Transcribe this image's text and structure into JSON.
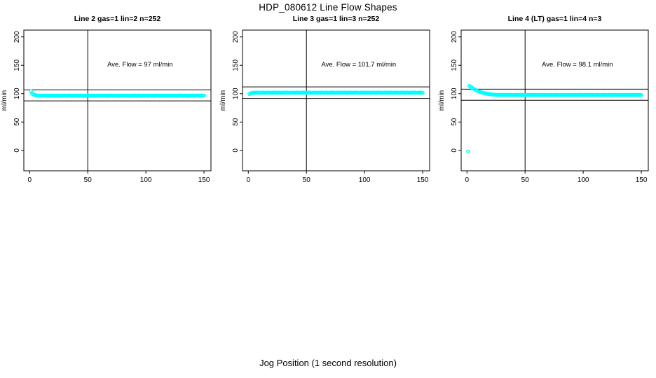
{
  "figure": {
    "title": "HDP_080612  Line Flow Shapes",
    "xlabel": "Jog Position (1 second resolution)"
  },
  "chart_data": [
    {
      "type": "scatter",
      "title": "Line 2 gas=1 lin=2 n=252",
      "annotation": "Ave. Flow =  97  ml/min",
      "ave_flow": 97,
      "ylabel": "ml/min",
      "point_color": "#00ffff",
      "line_color": "#000000",
      "vline_x": 50,
      "ref_lines_y": [
        106.7,
        87.3
      ],
      "xlim": [
        -5,
        156
      ],
      "ylim": [
        -36,
        212
      ],
      "xticks": [
        0,
        50,
        100,
        150
      ],
      "yticks": [
        0,
        50,
        100,
        150,
        200
      ],
      "x_start": 1,
      "y": [
        104.3,
        100.9,
        98.9,
        97.8,
        97.2,
        96.9,
        96.7,
        96.6,
        96.5,
        96.4,
        96.6,
        96.5,
        96.5,
        96.8,
        96.3,
        96.6,
        96.2,
        96.7,
        96.4,
        96.8,
        96.5,
        96.3,
        96.5,
        96.8,
        96.3,
        96.6,
        96.2,
        96.7,
        96.4,
        96.8,
        96.5,
        96.3,
        96.5,
        96.8,
        96.3,
        96.6,
        96.2,
        96.7,
        96.4,
        96.8,
        96.5,
        96.3,
        96.5,
        96.8,
        96.3,
        96.6,
        96.2,
        96.7,
        96.4,
        96.8,
        96.5,
        96.3,
        96.5,
        96.8,
        96.3,
        96.6,
        96.2,
        96.7,
        96.4,
        96.8,
        96.5,
        96.3,
        96.5,
        96.8,
        96.3,
        96.6,
        96.2,
        96.7,
        96.4,
        96.8,
        96.5,
        96.3,
        96.5,
        96.8,
        96.3,
        96.6,
        96.2,
        96.7,
        96.4,
        96.8,
        96.5,
        96.3,
        96.5,
        96.8,
        96.3,
        96.6,
        96.2,
        96.7,
        96.4,
        96.8,
        96.5,
        96.3,
        96.5,
        96.8,
        96.3,
        96.6,
        96.2,
        96.7,
        96.4,
        96.8,
        96.5,
        96.3,
        96.5,
        96.8,
        96.3,
        96.6,
        96.2,
        96.7,
        96.4,
        96.8,
        96.5,
        96.3,
        96.5,
        96.8,
        96.3,
        96.6,
        96.2,
        96.7,
        96.4,
        96.8,
        96.5,
        96.3,
        96.5,
        96.8,
        96.3,
        96.6,
        96.2,
        96.7,
        96.4,
        96.8,
        96.5,
        96.3,
        96.5,
        96.8,
        96.3,
        96.6,
        96.2,
        96.7,
        96.4,
        96.8,
        96.5,
        96.3,
        96.5,
        96.8,
        96.3,
        96.6,
        96.2,
        96.7,
        96.4,
        96.8
      ]
    },
    {
      "type": "scatter",
      "title": "Line 3 gas=1 lin=3 n=252",
      "annotation": "Ave. Flow =  101.7  ml/min",
      "ave_flow": 101.7,
      "ylabel": "ml/min",
      "point_color": "#00ffff",
      "line_color": "#000000",
      "vline_x": 50,
      "ref_lines_y": [
        111.9,
        91.5
      ],
      "xlim": [
        -5,
        156
      ],
      "ylim": [
        -36,
        212
      ],
      "xticks": [
        0,
        50,
        100,
        150
      ],
      "yticks": [
        0,
        50,
        100,
        150,
        200
      ],
      "x_start": 1,
      "y": [
        99.4,
        100.6,
        101.2,
        101.5,
        101.6,
        101.7,
        102.0,
        101.5,
        101.8,
        101.4,
        101.9,
        101.6,
        102.0,
        101.7,
        101.5,
        101.7,
        102.0,
        101.5,
        101.8,
        101.4,
        101.9,
        101.6,
        102.0,
        101.7,
        101.5,
        101.7,
        102.0,
        101.5,
        101.8,
        101.4,
        101.9,
        101.6,
        102.0,
        101.7,
        101.5,
        101.7,
        102.0,
        101.5,
        101.8,
        101.4,
        101.9,
        101.6,
        102.0,
        101.7,
        101.5,
        101.7,
        102.0,
        101.5,
        101.8,
        101.4,
        101.9,
        101.6,
        102.0,
        101.7,
        101.5,
        101.7,
        102.0,
        101.5,
        101.8,
        101.4,
        101.9,
        101.6,
        102.0,
        101.7,
        101.5,
        101.7,
        102.0,
        101.5,
        101.8,
        101.4,
        101.9,
        101.6,
        102.0,
        101.7,
        101.5,
        101.7,
        102.0,
        101.5,
        101.8,
        101.4,
        101.9,
        101.6,
        102.0,
        101.7,
        101.5,
        101.7,
        102.0,
        101.5,
        101.8,
        101.4,
        101.9,
        101.6,
        102.0,
        101.7,
        101.5,
        101.7,
        102.0,
        101.5,
        101.8,
        101.4,
        101.9,
        101.6,
        102.0,
        101.7,
        101.5,
        101.7,
        102.0,
        101.5,
        101.8,
        101.4,
        101.9,
        101.6,
        102.0,
        101.7,
        101.5,
        101.7,
        102.0,
        101.5,
        101.8,
        101.4,
        101.9,
        101.6,
        102.0,
        101.7,
        101.5,
        101.7,
        102.0,
        101.5,
        101.8,
        101.4,
        101.9,
        101.6,
        102.0,
        101.7,
        101.5,
        101.7,
        102.0,
        101.5,
        101.8,
        101.4,
        101.9,
        101.6,
        102.0,
        101.7,
        101.5,
        101.7,
        102.0,
        101.5,
        101.8,
        101.4
      ]
    },
    {
      "type": "scatter",
      "title": "Line 4 (LT) gas=1 lin=4 n=3",
      "annotation": "Ave. Flow =  98.1  ml/min",
      "ave_flow": 98.1,
      "ylabel": "ml/min",
      "point_color": "#00ffff",
      "line_color": "#000000",
      "vline_x": 50,
      "ref_lines_y": [
        107.9,
        88.3
      ],
      "xlim": [
        -5,
        156
      ],
      "ylim": [
        -36,
        212
      ],
      "xticks": [
        0,
        50,
        100,
        150
      ],
      "yticks": [
        0,
        50,
        100,
        150,
        200
      ],
      "x_start": 1,
      "y": [
        -2.0,
        113.6,
        112.4,
        110.9,
        109.6,
        108.3,
        107.2,
        106.1,
        105.1,
        104.2,
        103.4,
        102.7,
        102.0,
        101.4,
        100.9,
        100.4,
        100.0,
        99.6,
        99.3,
        99.0,
        98.7,
        98.5,
        98.3,
        98.1,
        98.0,
        97.9,
        97.8,
        98.0,
        97.7,
        97.9,
        97.7,
        98.0,
        97.5,
        97.8,
        97.4,
        97.9,
        97.6,
        98.0,
        97.7,
        97.5,
        97.7,
        98.0,
        97.5,
        97.8,
        97.4,
        97.9,
        97.6,
        98.0,
        97.7,
        97.5,
        97.7,
        98.0,
        97.5,
        97.8,
        97.4,
        97.9,
        97.6,
        98.0,
        97.7,
        97.5,
        97.7,
        98.0,
        97.5,
        97.8,
        97.4,
        97.9,
        97.6,
        98.0,
        97.7,
        97.5,
        97.7,
        98.0,
        97.5,
        97.8,
        97.4,
        97.9,
        97.6,
        98.0,
        97.7,
        97.5,
        97.7,
        98.0,
        97.5,
        97.8,
        97.4,
        97.9,
        97.6,
        98.0,
        97.7,
        97.5,
        97.7,
        98.0,
        97.5,
        97.8,
        97.4,
        97.9,
        97.6,
        98.0,
        97.7,
        97.5,
        97.7,
        98.0,
        97.5,
        97.8,
        97.4,
        97.9,
        97.6,
        98.0,
        97.7,
        97.5,
        97.7,
        98.0,
        97.5,
        97.8,
        97.4,
        97.9,
        97.6,
        98.0,
        97.7,
        97.5,
        97.7,
        98.0,
        97.5,
        97.8,
        97.4,
        97.9,
        97.6,
        98.0,
        97.7,
        97.5,
        97.7,
        98.0,
        97.5,
        97.8,
        97.4,
        97.9,
        97.6,
        98.0,
        97.7,
        97.5,
        97.7,
        98.0,
        97.5,
        97.8,
        97.4,
        97.9,
        97.6,
        98.0,
        97.7,
        97.5
      ]
    }
  ]
}
